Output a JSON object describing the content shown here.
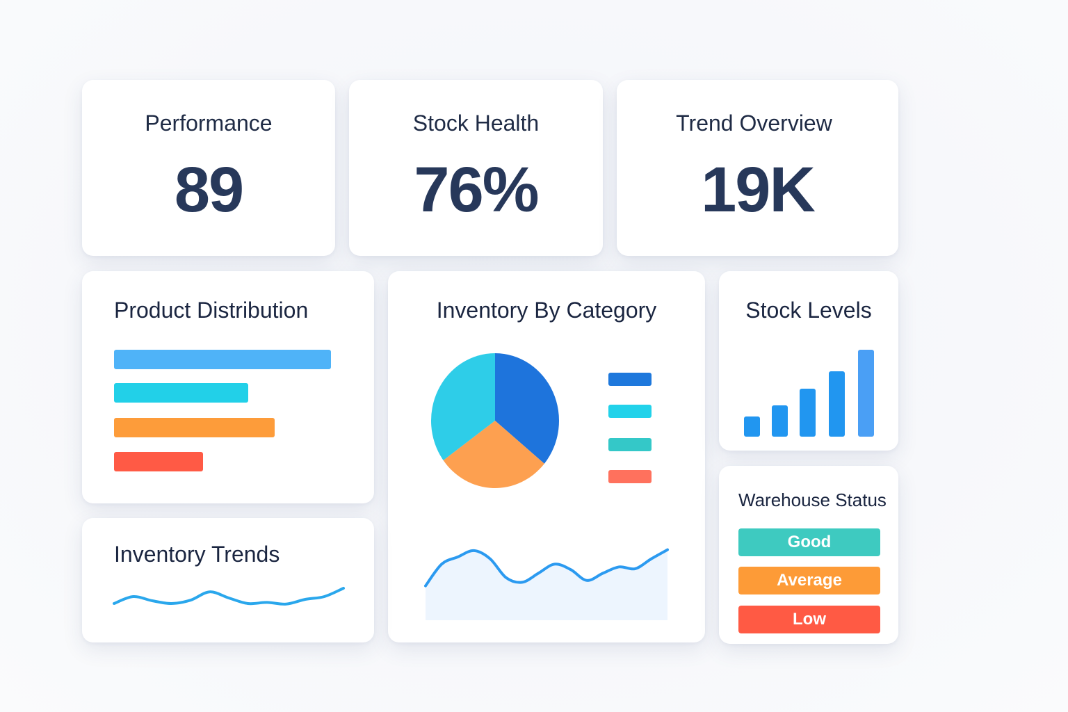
{
  "kpis": [
    {
      "title": "Performance",
      "value": "89"
    },
    {
      "title": "Stock Health",
      "value": "76%"
    },
    {
      "title": "Trend Overview",
      "value": "19K"
    }
  ],
  "product_distribution": {
    "title": "Product Distribution",
    "bars": [
      {
        "value": 1.0,
        "color": "#4fb3f8"
      },
      {
        "value": 0.62,
        "color": "#22d0e8"
      },
      {
        "value": 0.74,
        "color": "#fd9c3a"
      },
      {
        "value": 0.41,
        "color": "#ff5a45"
      }
    ]
  },
  "inventory_by_category": {
    "title": "Inventory By Category",
    "slices": [
      {
        "value": 36,
        "color": "#1e74dc"
      },
      {
        "value": 29,
        "color": "#fda050"
      },
      {
        "value": 35,
        "color": "#2ecde8"
      }
    ],
    "legend": [
      {
        "color": "#1e78dc"
      },
      {
        "color": "#22d2ea"
      },
      {
        "color": "#34c8c8"
      },
      {
        "color": "#ff715d"
      }
    ],
    "trend": [
      0.38,
      0.62,
      0.7,
      0.77,
      0.68,
      0.47,
      0.42,
      0.52,
      0.62,
      0.56,
      0.44,
      0.52,
      0.59,
      0.57,
      0.68,
      0.78
    ]
  },
  "stock_levels": {
    "title": "Stock Levels",
    "bars": [
      0.23,
      0.36,
      0.55,
      0.75,
      1.0
    ],
    "colors": [
      "#2196f0",
      "#2196f0",
      "#2196f0",
      "#2196f0",
      "#4a9ff5"
    ]
  },
  "inventory_trends": {
    "title": "Inventory Trends",
    "line": [
      0.3,
      0.55,
      0.4,
      0.3,
      0.42,
      0.72,
      0.5,
      0.3,
      0.34,
      0.28,
      0.45,
      0.55,
      0.85
    ]
  },
  "warehouse_status": {
    "title": "Warehouse Status",
    "items": [
      {
        "label": "Good",
        "color": "#3ecac0"
      },
      {
        "label": "Average",
        "color": "#fd9b37"
      },
      {
        "label": "Low",
        "color": "#ff5a44"
      }
    ]
  }
}
